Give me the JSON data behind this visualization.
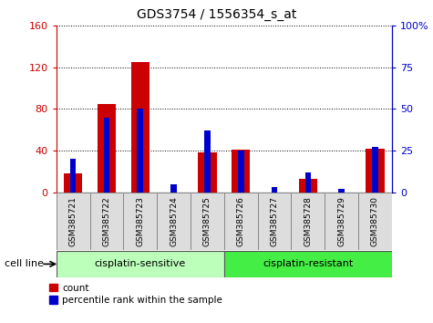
{
  "title": "GDS3754 / 1556354_s_at",
  "samples": [
    "GSM385721",
    "GSM385722",
    "GSM385723",
    "GSM385724",
    "GSM385725",
    "GSM385726",
    "GSM385727",
    "GSM385728",
    "GSM385729",
    "GSM385730"
  ],
  "count": [
    18,
    85,
    125,
    0,
    38,
    41,
    0,
    13,
    0,
    42
  ],
  "percentile": [
    20,
    45,
    50,
    5,
    37,
    25,
    3,
    12,
    2,
    27
  ],
  "left_ylim": [
    0,
    160
  ],
  "right_ylim": [
    0,
    100
  ],
  "left_yticks": [
    0,
    40,
    80,
    120,
    160
  ],
  "right_yticks": [
    0,
    25,
    50,
    75,
    100
  ],
  "right_yticklabels": [
    "0",
    "25",
    "50",
    "75",
    "100%"
  ],
  "red_color": "#cc0000",
  "blue_color": "#0000cc",
  "groups": [
    {
      "label": "cisplatin-sensitive",
      "start": 0,
      "end": 5,
      "color": "#bbffbb"
    },
    {
      "label": "cisplatin-resistant",
      "start": 5,
      "end": 10,
      "color": "#44ee44"
    }
  ],
  "cell_line_label": "cell line",
  "legend_count": "count",
  "legend_percentile": "percentile rank within the sample",
  "title_fontsize": 10,
  "tick_fontsize": 8,
  "sample_cell_color": "#dddddd"
}
